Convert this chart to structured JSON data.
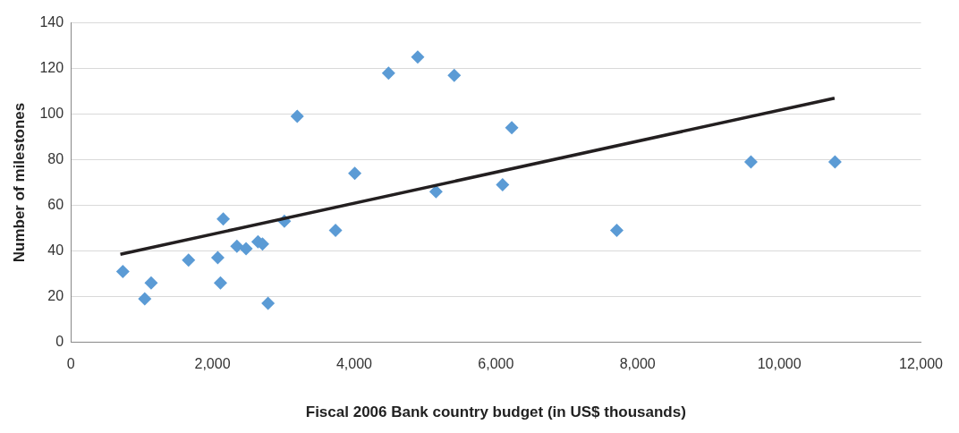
{
  "chart_data": {
    "type": "scatter",
    "xlabel": "Fiscal 2006 Bank country budget (in US$ thousands)",
    "ylabel": "Number of milestones",
    "xlim": [
      0,
      12000
    ],
    "xticks": [
      {
        "value": 0,
        "label": "0"
      },
      {
        "value": 2000,
        "label": "2,000"
      },
      {
        "value": 4000,
        "label": "4,000"
      },
      {
        "value": 6000,
        "label": "6,000"
      },
      {
        "value": 8000,
        "label": "8,000"
      },
      {
        "value": 10000,
        "label": "10,000"
      },
      {
        "value": 12000,
        "label": "12,000"
      }
    ],
    "ylim": [
      0,
      140
    ],
    "yticks": [
      0,
      20,
      40,
      60,
      80,
      100,
      120,
      140
    ],
    "grid": "y",
    "legend": false,
    "series": [
      {
        "type": "scatter",
        "marker": "diamond",
        "color": "#5b9bd5",
        "x": [
          735,
          1044,
          1134,
          1662,
          2075,
          2113,
          2152,
          2345,
          2474,
          2642,
          2706,
          2784,
          3015,
          3196,
          3737,
          4008,
          4485,
          4897,
          5155,
          5412,
          6095,
          6224,
          7706,
          9600,
          10786
        ],
        "values": [
          31,
          19,
          26,
          36,
          37,
          26,
          54,
          42,
          41,
          44,
          43,
          17,
          53,
          99,
          49,
          74,
          118,
          125,
          66,
          117,
          69,
          94,
          49,
          79,
          79
        ]
      },
      {
        "type": "line",
        "color": "#231f20",
        "x": [
          700,
          10780
        ],
        "values": [
          38.5,
          107
        ]
      }
    ]
  }
}
